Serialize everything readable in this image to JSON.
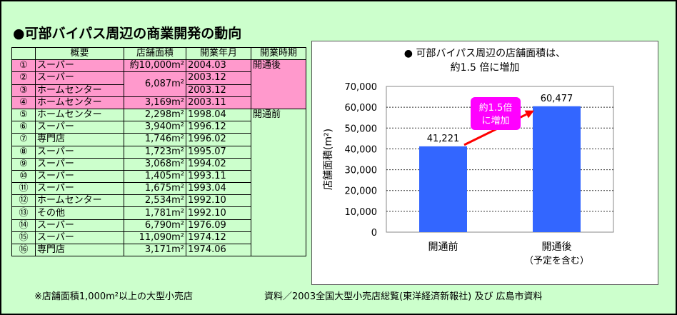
{
  "title": "●可部バイパス周辺の商業開発の動向",
  "table": {
    "headers": [
      "",
      "概要",
      "店舗面積",
      "開業年月",
      "開業時期"
    ],
    "rows": [
      {
        "no": "①",
        "type": "スーパー",
        "area": "約10,000m²",
        "date": "2004.03"
      },
      {
        "no": "②",
        "type": "スーパー",
        "area": "",
        "date": "2003.12"
      },
      {
        "no": "③",
        "type": "ホームセンター",
        "area": "",
        "date": "2003.12"
      },
      {
        "no": "④",
        "type": "ホームセンター",
        "area": "3,169m²",
        "date": "2003.11"
      },
      {
        "no": "⑤",
        "type": "ホームセンター",
        "area": "2,298m²",
        "date": "1998.04"
      },
      {
        "no": "⑥",
        "type": "スーパー",
        "area": "3,940m²",
        "date": "1996.12"
      },
      {
        "no": "⑦",
        "type": "専門店",
        "area": "1,746m²",
        "date": "1996.02"
      },
      {
        "no": "⑧",
        "type": "スーパー",
        "area": "1,723m²",
        "date": "1995.07"
      },
      {
        "no": "⑨",
        "type": "スーパー",
        "area": "3,068m²",
        "date": "1994.02"
      },
      {
        "no": "⑩",
        "type": "スーパー",
        "area": "1,405m²",
        "date": "1993.11"
      },
      {
        "no": "⑪",
        "type": "スーパー",
        "area": "1,675m²",
        "date": "1993.04"
      },
      {
        "no": "⑫",
        "type": "ホームセンター",
        "area": "2,534m²",
        "date": "1992.10"
      },
      {
        "no": "⑬",
        "type": "その他",
        "area": "1,781m²",
        "date": "1992.10"
      },
      {
        "no": "⑭",
        "type": "スーパー",
        "area": "6,790m²",
        "date": "1976.09"
      },
      {
        "no": "⑮",
        "type": "スーパー",
        "area": "11,090m²",
        "date": "1974.12"
      },
      {
        "no": "⑯",
        "type": "専門店",
        "area": "3,171m²",
        "date": "1974.06"
      }
    ],
    "merged_area_2_3": "6,087m²",
    "period_after": "開通後",
    "period_before": "開通前"
  },
  "footnote": "※店舗面積1,000m²以上の大型小売店",
  "source": "資料／2003全国大型小売店総覧(東洋経済新報社) 及び 広島市資料",
  "chart_data": {
    "type": "bar",
    "title_line1": "● 可部バイパス周辺の店舗面積は、",
    "title_line2": "約1.5 倍に増加",
    "categories": [
      "開通前",
      "開通後"
    ],
    "category_sublabels": [
      "",
      "（予定を含む）"
    ],
    "values": [
      41221,
      60477
    ],
    "value_labels": [
      "41,221",
      "60,477"
    ],
    "ylabel": "店舗面積(m²)",
    "ylim": [
      0,
      70000
    ],
    "yticks": [
      0,
      10000,
      20000,
      30000,
      40000,
      50000,
      60000,
      70000
    ],
    "ytick_labels": [
      "0",
      "10,000",
      "20,000",
      "30,000",
      "40,000",
      "50,000",
      "60,000",
      "70,000"
    ],
    "grid": true,
    "bar_color": "#3366ff",
    "annotation": [
      "約1.5倍",
      "に増加"
    ],
    "annotation_color": "#ff00ff",
    "arrow_color": "#ff0000"
  }
}
